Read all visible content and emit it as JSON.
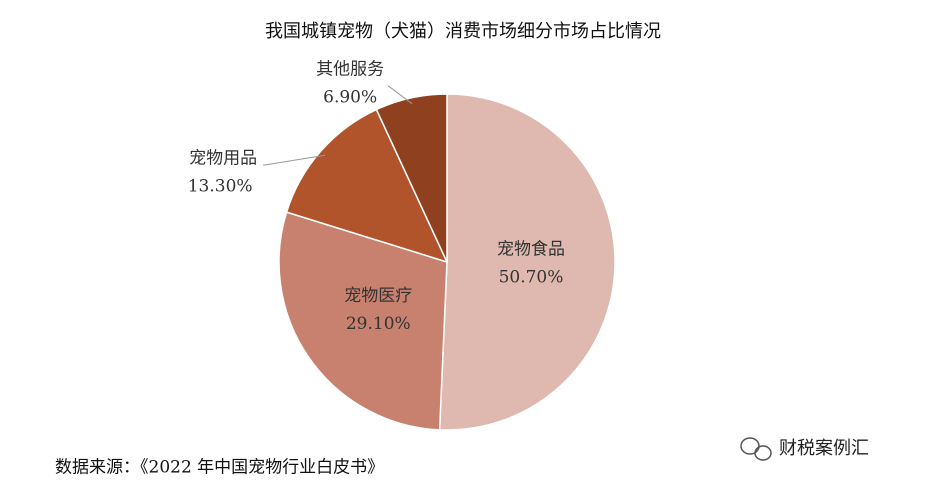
{
  "chart_data": {
    "type": "pie",
    "title": "我国城镇宠物（犬猫）消费市场细分市场占比情况",
    "categories": [
      "宠物食品",
      "宠物医疗",
      "宠物用品",
      "其他服务"
    ],
    "values": [
      50.7,
      29.1,
      13.3,
      6.9
    ],
    "value_labels": [
      "50.70%",
      "29.10%",
      "13.30%",
      "6.90%"
    ],
    "colors": [
      "#dfb9af",
      "#c8816f",
      "#b1532b",
      "#8f401f"
    ]
  },
  "source": "数据来源：《2022 年中国宠物行业白皮书》",
  "watermark": "财税案例汇"
}
